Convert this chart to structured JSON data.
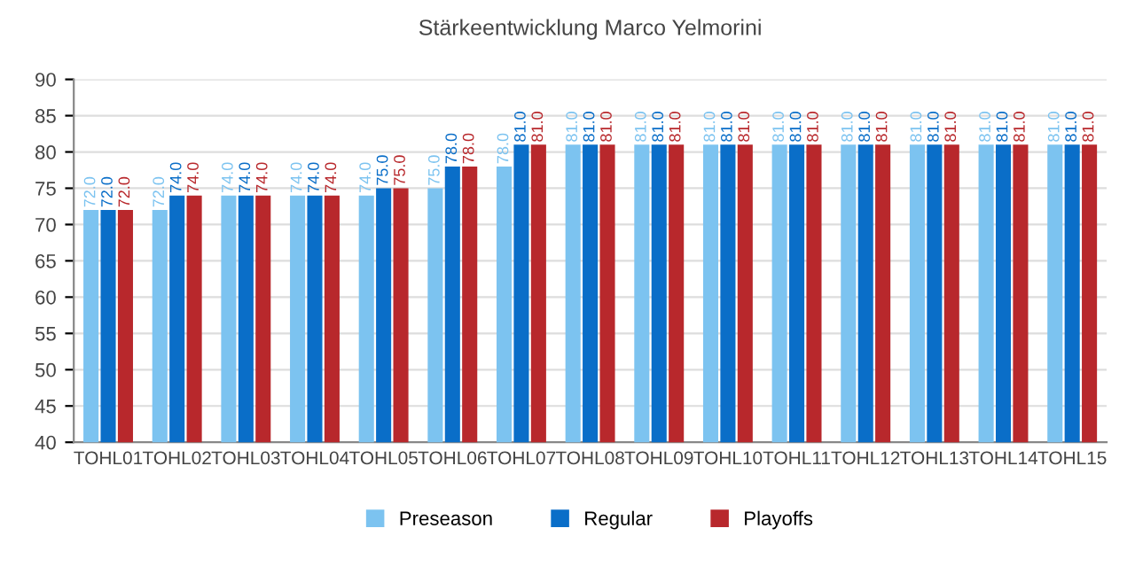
{
  "chart_data": {
    "type": "bar",
    "title": "Stärkeentwicklung Marco Yelmorini",
    "categories": [
      "TOHL01",
      "TOHL02",
      "TOHL03",
      "TOHL04",
      "TOHL05",
      "TOHL06",
      "TOHL07",
      "TOHL08",
      "TOHL09",
      "TOHL10",
      "TOHL11",
      "TOHL12",
      "TOHL13",
      "TOHL14",
      "TOHL15"
    ],
    "series": [
      {
        "name": "Preseason",
        "color": "#7cc3f0",
        "values": [
          72,
          72,
          74,
          74,
          74,
          75,
          78,
          81,
          81,
          81,
          81,
          81,
          81,
          81,
          81
        ],
        "value_labels": [
          "72.0",
          "72.0",
          "74.0",
          "74.0",
          "74.0",
          "75.0",
          "78.0",
          "81.0",
          "81.0",
          "81.0",
          "81.0",
          "81.0",
          "81.0",
          "81.0",
          "81.0"
        ]
      },
      {
        "name": "Regular",
        "color": "#0a6ec8",
        "values": [
          72,
          74,
          74,
          74,
          75,
          78,
          81,
          81,
          81,
          81,
          81,
          81,
          81,
          81,
          81
        ],
        "value_labels": [
          "72.0",
          "74.0",
          "74.0",
          "74.0",
          "75.0",
          "78.0",
          "81.0",
          "81.0",
          "81.0",
          "81.0",
          "81.0",
          "81.0",
          "81.0",
          "81.0",
          "81.0"
        ]
      },
      {
        "name": "Playoffs",
        "color": "#b8282c",
        "values": [
          72,
          74,
          74,
          74,
          75,
          78,
          81,
          81,
          81,
          81,
          81,
          81,
          81,
          81,
          81
        ],
        "value_labels": [
          "72.0",
          "74.0",
          "74.0",
          "74.0",
          "75.0",
          "78.0",
          "81.0",
          "81.0",
          "81.0",
          "81.0",
          "81.0",
          "81.0",
          "81.0",
          "81.0",
          "81.0"
        ]
      }
    ],
    "ylim": [
      40,
      90
    ],
    "yticks": [
      40,
      45,
      50,
      55,
      60,
      65,
      70,
      75,
      80,
      85,
      90
    ],
    "grid": "y",
    "legend": "bottom"
  }
}
